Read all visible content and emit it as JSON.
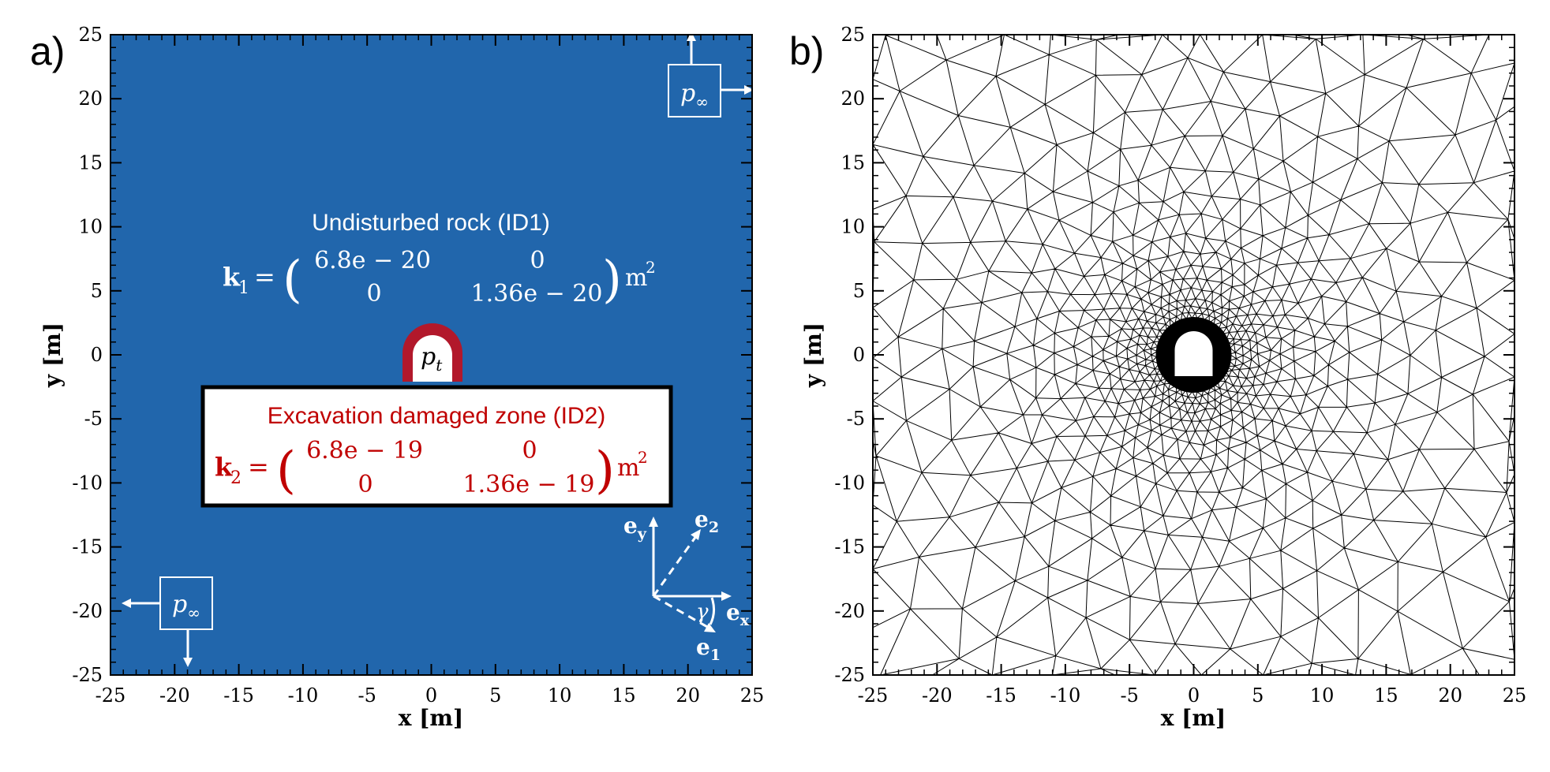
{
  "panels": [
    {
      "label": "a)",
      "xlabel": "x [m]",
      "ylabel": "y [m]",
      "xticks": [
        "-25",
        "-20",
        "-15",
        "-10",
        "-5",
        "0",
        "5",
        "10",
        "15",
        "20",
        "25"
      ],
      "yticks": [
        "25",
        "20",
        "15",
        "10",
        "5",
        "0",
        "-5",
        "-10",
        "-15",
        "-20",
        "-25"
      ],
      "xlim": [
        -25,
        25
      ],
      "ylim": [
        -25,
        25
      ],
      "background_color": "#2166ac"
    },
    {
      "label": "b)",
      "xlabel": "x [m]",
      "ylabel": "y [m]",
      "xticks": [
        "-25",
        "-20",
        "-15",
        "-10",
        "-5",
        "0",
        "5",
        "10",
        "15",
        "20",
        "25"
      ],
      "yticks": [
        "25",
        "20",
        "15",
        "10",
        "5",
        "0",
        "-5",
        "-10",
        "-15",
        "-20",
        "-25"
      ],
      "xlim": [
        -25,
        25
      ],
      "ylim": [
        -25,
        25
      ]
    }
  ],
  "annotations": {
    "rock_title": "Undisturbed rock (ID1)",
    "k1": {
      "symbol": "k",
      "sub": "1",
      "eq": "=",
      "m11": "6.8e − 20",
      "m12": "0",
      "m21": "0",
      "m22": "1.36e − 20",
      "unit": "m",
      "unit_exp": "2"
    },
    "edz_title": "Excavation damaged zone (ID2)",
    "k2": {
      "symbol": "k",
      "sub": "2",
      "eq": "=",
      "m11": "6.8e − 19",
      "m12": "0",
      "m21": "0",
      "m22": "1.36e − 19",
      "unit": "m",
      "unit_exp": "2"
    },
    "p_tunnel": {
      "base": "p",
      "sub": "t"
    },
    "p_far": {
      "base": "p",
      "sub": "∞"
    },
    "axes_labels": {
      "ey": {
        "base": "e",
        "sub": "y"
      },
      "ex": {
        "base": "e",
        "sub": "x"
      },
      "e1": {
        "base": "e",
        "sub": "1"
      },
      "e2": {
        "base": "e",
        "sub": "2"
      },
      "gamma": "γ"
    }
  },
  "colors": {
    "rock": "#2166ac",
    "edz": "#b2182b",
    "edz_text": "#c00000",
    "white": "#ffffff",
    "black": "#000000"
  }
}
